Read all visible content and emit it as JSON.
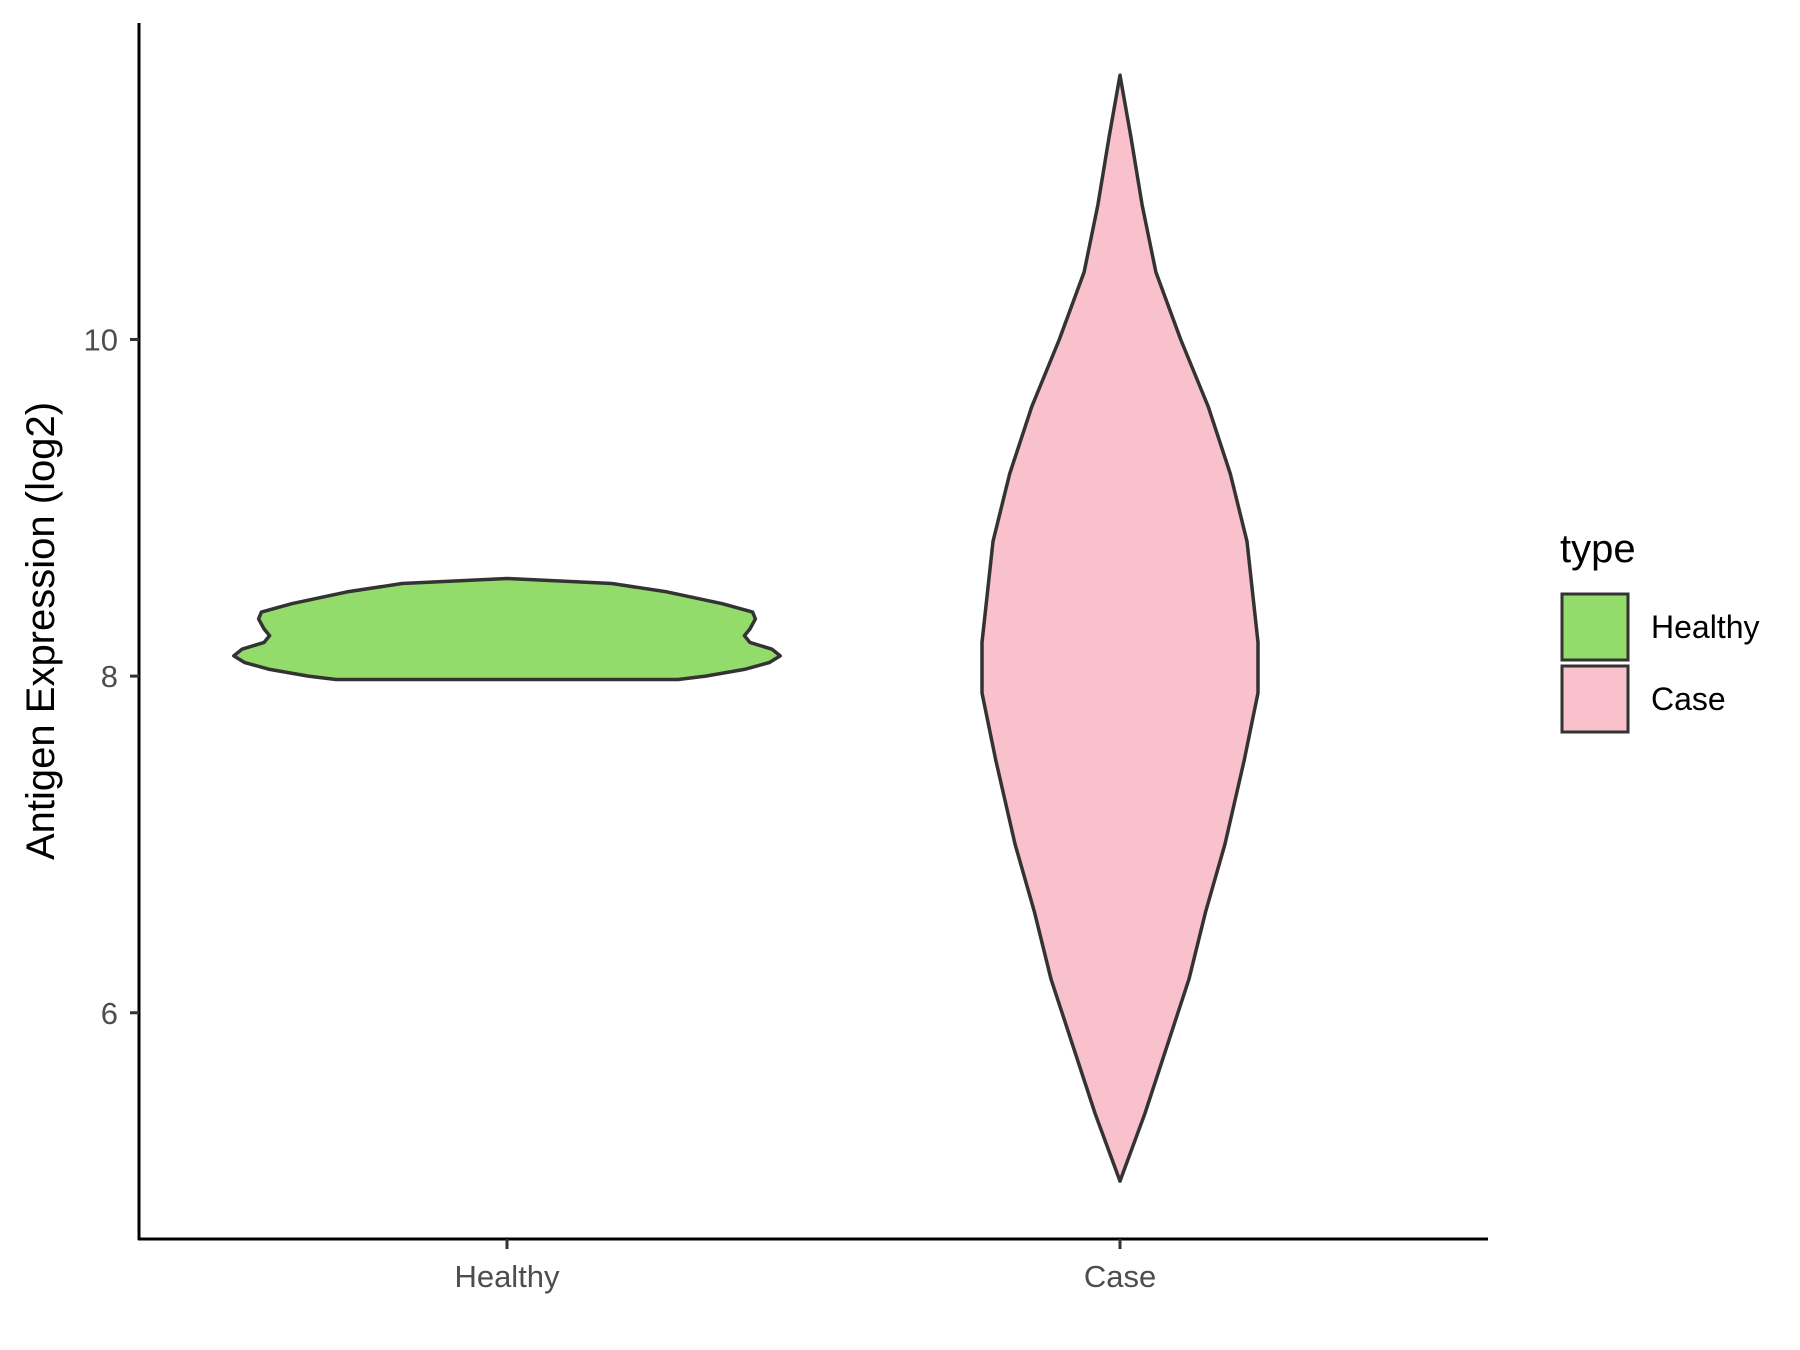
{
  "chart_data": {
    "type": "violin",
    "ylabel": "Antigen Expression (log2)",
    "xlabel": "",
    "categories": [
      "Healthy",
      "Case"
    ],
    "y_ticks": [
      6,
      8,
      10
    ],
    "ylim": [
      4.65,
      11.88
    ],
    "grid": false,
    "legend": {
      "title": "type",
      "position": "right",
      "entries": [
        {
          "label": "Healthy",
          "color": "#93dc6c"
        },
        {
          "label": "Case",
          "color": "#f8c1cc"
        }
      ]
    },
    "series": [
      {
        "category": "Healthy",
        "color": "#93dc6c",
        "min": 7.98,
        "max": 8.58,
        "density_profile": [
          [
            7.98,
            0.62
          ],
          [
            8.0,
            0.72
          ],
          [
            8.04,
            0.86
          ],
          [
            8.08,
            0.95
          ],
          [
            8.12,
            0.99
          ],
          [
            8.16,
            0.96
          ],
          [
            8.2,
            0.88
          ],
          [
            8.24,
            0.86
          ],
          [
            8.28,
            0.88
          ],
          [
            8.34,
            0.9
          ],
          [
            8.38,
            0.89
          ],
          [
            8.43,
            0.78
          ],
          [
            8.5,
            0.58
          ],
          [
            8.55,
            0.38
          ],
          [
            8.58,
            0.0
          ]
        ]
      },
      {
        "category": "Case",
        "color": "#f8c1cc",
        "min": 5.0,
        "max": 11.57,
        "density_profile": [
          [
            5.0,
            0.0
          ],
          [
            5.4,
            0.09
          ],
          [
            5.8,
            0.17
          ],
          [
            6.2,
            0.25
          ],
          [
            6.6,
            0.31
          ],
          [
            7.0,
            0.38
          ],
          [
            7.5,
            0.45
          ],
          [
            7.9,
            0.5
          ],
          [
            8.2,
            0.5
          ],
          [
            8.5,
            0.48
          ],
          [
            8.8,
            0.46
          ],
          [
            9.2,
            0.4
          ],
          [
            9.6,
            0.32
          ],
          [
            10.0,
            0.22
          ],
          [
            10.4,
            0.13
          ],
          [
            10.8,
            0.08
          ],
          [
            11.2,
            0.04
          ],
          [
            11.57,
            0.0
          ]
        ]
      }
    ]
  }
}
